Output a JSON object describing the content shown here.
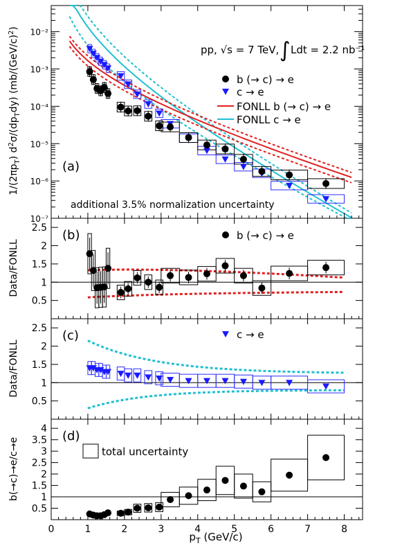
{
  "figure": {
    "xlabel": "p_T (GeV/c)",
    "xticks": [
      "0",
      "1",
      "2",
      "3",
      "4",
      "5",
      "6",
      "7",
      "8"
    ],
    "xlim": [
      0,
      8.5
    ]
  },
  "colors": {
    "bdata": "#000000",
    "cdata": "#1a1aff",
    "fonll_b": "#e02020",
    "fonll_c": "#1fc0d0",
    "box_c": "#2a2aff"
  },
  "panels": {
    "a": {
      "tag": "(a)",
      "ylabel_html": "1/(2πp_T) d²σ/(dp_T dy) (mb/(GeV/c)²)",
      "yticks": [
        "10⁻⁷",
        "10⁻⁶",
        "10⁻⁵",
        "10⁻⁴",
        "10⁻³",
        "10⁻²"
      ],
      "header": "pp, √s = 7 TeV, ∫Ldt = 2.2 nb⁻¹",
      "header_left": "pp, √s = 7 TeV,",
      "header_int": "∫",
      "header_right": "Ldt = 2.2 nb⁻¹",
      "legend": [
        "b (→ c) → e",
        "c → e",
        "FONLL b (→ c) → e",
        "FONLL c → e"
      ],
      "note": "additional 3.5% normalization uncertainty"
    },
    "b": {
      "tag": "(b)",
      "ylabel": "Data/FONLL",
      "legend": "b (→ c) → e",
      "yticks": [
        "0.5",
        "1",
        "1.5",
        "2",
        "2.5"
      ]
    },
    "c": {
      "tag": "(c)",
      "ylabel": "Data/FONLL",
      "legend": "c → e",
      "yticks": [
        "0.5",
        "1",
        "1.5",
        "2",
        "2.5"
      ]
    },
    "d": {
      "tag": "(d)",
      "ylabel": "b(→c)→e/c→e",
      "legend": "total uncertainty",
      "yticks": [
        "0.5",
        "1",
        "1.5",
        "2",
        "2.5",
        "3",
        "3.5",
        "4"
      ]
    }
  },
  "chart_data": [
    {
      "type": "scatter",
      "panel": "a",
      "ylog": true,
      "ylim": [
        1e-07,
        0.05
      ],
      "series": [
        {
          "name": "b (→ c) → e",
          "x": [
            1.05,
            1.15,
            1.25,
            1.35,
            1.45,
            1.55,
            1.9,
            2.1,
            2.35,
            2.65,
            2.95,
            3.25,
            3.75,
            4.25,
            4.75,
            5.25,
            5.75,
            6.5,
            7.5
          ],
          "y": [
            0.00085,
            0.00052,
            0.0003,
            0.00026,
            0.00032,
            0.00022,
            9.5e-05,
            7.5e-05,
            7.6e-05,
            5.4e-05,
            3e-05,
            2.8e-05,
            1.45e-05,
            9.2e-06,
            7.2e-06,
            3.8e-06,
            1.8e-06,
            1.45e-06,
            8.5e-07
          ]
        },
        {
          "name": "c → e",
          "x": [
            1.05,
            1.15,
            1.25,
            1.35,
            1.45,
            1.55,
            1.9,
            2.1,
            2.35,
            2.65,
            2.95,
            3.25,
            3.75,
            4.25,
            4.75,
            5.25,
            5.75,
            6.5,
            7.5
          ],
          "y": [
            0.0035,
            0.0026,
            0.002,
            0.0016,
            0.0013,
            0.00105,
            0.00065,
            0.00039,
            0.00021,
            0.000115,
            6.5e-05,
            3.4e-05,
            1.4e-05,
            6.5e-06,
            3.8e-06,
            2.4e-06,
            1.6e-06,
            7.5e-07,
            3.3e-07
          ]
        }
      ]
    },
    {
      "type": "scatter",
      "panel": "b",
      "ylim": [
        0,
        2.75
      ],
      "series": [
        {
          "name": "b (→ c) → e",
          "x": [
            1.05,
            1.15,
            1.25,
            1.35,
            1.45,
            1.55,
            1.9,
            2.1,
            2.35,
            2.65,
            2.95,
            3.25,
            3.75,
            4.25,
            4.75,
            5.25,
            5.75,
            6.5,
            7.5
          ],
          "y": [
            1.78,
            1.32,
            0.85,
            0.86,
            0.87,
            1.38,
            0.72,
            0.82,
            1.12,
            1.0,
            0.86,
            1.18,
            1.13,
            1.23,
            1.45,
            1.18,
            0.84,
            1.24,
            1.4
          ]
        }
      ]
    },
    {
      "type": "scatter",
      "panel": "c",
      "ylim": [
        0,
        2.75
      ],
      "series": [
        {
          "name": "c → e",
          "x": [
            1.05,
            1.15,
            1.25,
            1.35,
            1.45,
            1.55,
            1.9,
            2.1,
            2.35,
            2.65,
            2.95,
            3.25,
            3.75,
            4.25,
            4.75,
            5.25,
            5.75,
            6.5,
            7.5
          ],
          "y": [
            1.4,
            1.4,
            1.35,
            1.35,
            1.3,
            1.3,
            1.25,
            1.2,
            1.2,
            1.15,
            1.12,
            1.08,
            1.05,
            1.05,
            1.05,
            1.03,
            1.0,
            1.0,
            0.9
          ]
        }
      ]
    },
    {
      "type": "scatter",
      "panel": "d",
      "ylim": [
        0,
        4.4
      ],
      "series": [
        {
          "name": "b(→c)→e/c→e",
          "x": [
            1.05,
            1.15,
            1.25,
            1.35,
            1.45,
            1.55,
            1.9,
            2.1,
            2.35,
            2.65,
            2.95,
            3.25,
            3.75,
            4.25,
            4.75,
            5.25,
            5.75,
            6.5,
            7.5
          ],
          "y": [
            0.25,
            0.2,
            0.17,
            0.17,
            0.22,
            0.3,
            0.28,
            0.33,
            0.5,
            0.52,
            0.55,
            0.88,
            1.05,
            1.3,
            1.72,
            1.47,
            1.22,
            1.95,
            2.72
          ]
        }
      ]
    }
  ]
}
